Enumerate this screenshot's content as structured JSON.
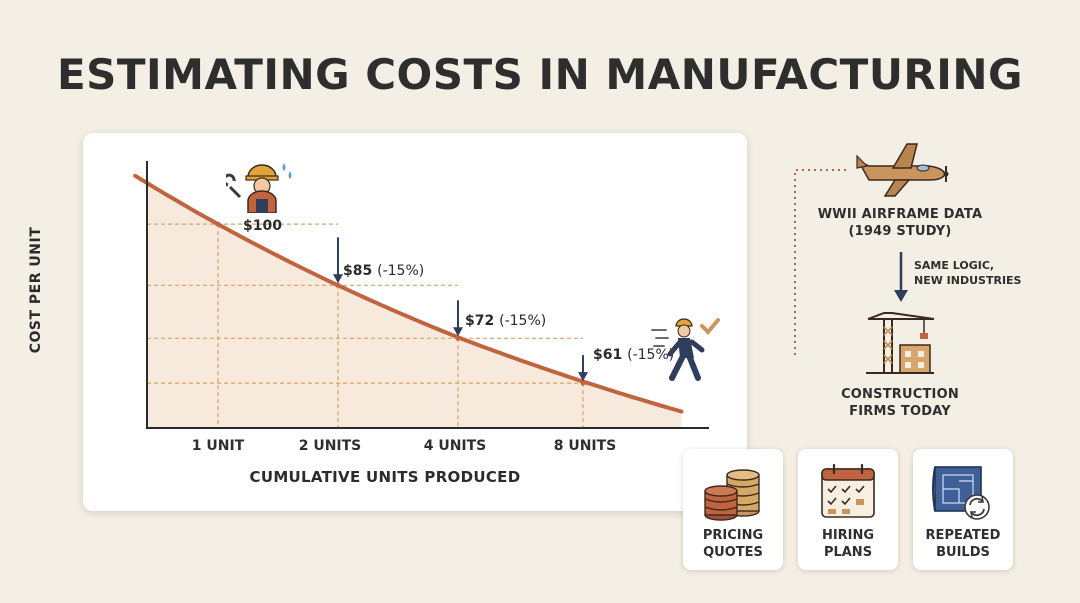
{
  "title": "ESTIMATING COSTS IN MANUFACTURING",
  "chart_data": {
    "type": "line",
    "xlabel": "CUMULATIVE UNITS PRODUCED",
    "ylabel": "COST PER UNIT",
    "x_ticks": [
      "1 UNIT",
      "2 UNITS",
      "4 UNITS",
      "8 UNITS"
    ],
    "x": [
      1,
      2,
      4,
      8
    ],
    "values": [
      100,
      85,
      72,
      61
    ],
    "value_labels": [
      "$100",
      "$85",
      "$72",
      "$61"
    ],
    "change_labels": [
      "",
      "(-15%)",
      "(-15%)",
      "(-15%)"
    ],
    "x_scale": "log2",
    "ylim": [
      50,
      115
    ],
    "curve_color": "#c0643f",
    "guide_color": "#d9a06a",
    "arrow_color": "#2f3e5c"
  },
  "side": {
    "airframe_label_1": "WWII AIRFRAME DATA",
    "airframe_label_2": "(1949 STUDY)",
    "arrow_note_1": "SAME LOGIC,",
    "arrow_note_2": "NEW INDUSTRIES",
    "construction_label_1": "CONSTRUCTION",
    "construction_label_2": "FIRMS TODAY"
  },
  "tiles": [
    {
      "icon": "coin-stacks-icon",
      "line1": "PRICING",
      "line2": "QUOTES"
    },
    {
      "icon": "calendar-checklist-icon",
      "line1": "HIRING",
      "line2": "PLANS"
    },
    {
      "icon": "blueprint-cycle-icon",
      "line1": "REPEATED",
      "line2": "BUILDS"
    }
  ],
  "colors": {
    "background": "#f4efe4",
    "card": "#ffffff",
    "accent_brown": "#c0643f",
    "navy": "#2f3e5c",
    "tan": "#c9955c"
  }
}
